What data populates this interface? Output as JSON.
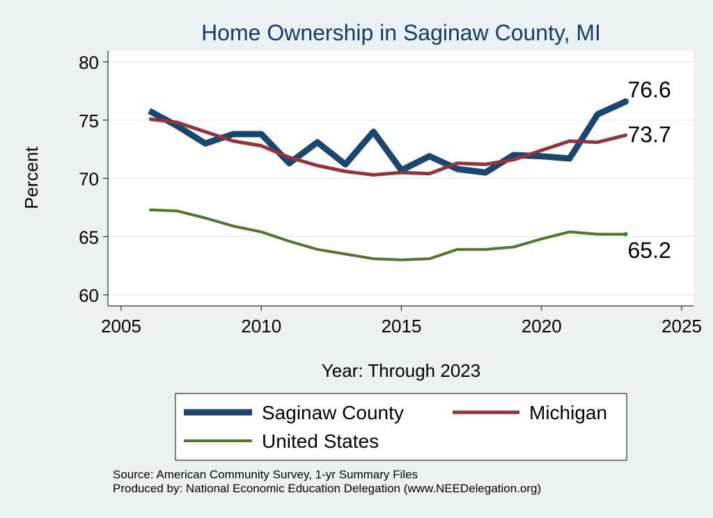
{
  "chart_data": {
    "type": "line",
    "title": "Home Ownership in Saginaw County, MI",
    "xlabel": "Year: Through 2023",
    "ylabel": "Percent",
    "xlim": [
      2005,
      2025
    ],
    "ylim": [
      60,
      80
    ],
    "xticks": [
      2005,
      2010,
      2015,
      2020,
      2025
    ],
    "yticks": [
      60,
      65,
      70,
      75,
      80
    ],
    "grid": true,
    "legend_position": "bottom",
    "series": [
      {
        "name": "Saginaw County",
        "color": "#1a476f",
        "x": [
          2006,
          2007,
          2008,
          2009,
          2010,
          2011,
          2012,
          2013,
          2014,
          2015,
          2016,
          2017,
          2018,
          2019,
          2020,
          2021,
          2022,
          2023
        ],
        "values": [
          75.8,
          74.5,
          73.0,
          73.8,
          73.8,
          71.3,
          73.1,
          71.2,
          74.0,
          70.7,
          71.9,
          70.8,
          70.5,
          72.0,
          71.9,
          71.7,
          75.5,
          76.6
        ],
        "end_label": "76.6"
      },
      {
        "name": "Michigan",
        "color": "#90353b",
        "x": [
          2006,
          2007,
          2008,
          2009,
          2010,
          2011,
          2012,
          2013,
          2014,
          2015,
          2016,
          2017,
          2018,
          2019,
          2020,
          2021,
          2022,
          2023
        ],
        "values": [
          75.1,
          74.8,
          74.0,
          73.2,
          72.8,
          71.8,
          71.1,
          70.6,
          70.3,
          70.5,
          70.4,
          71.3,
          71.2,
          71.6,
          72.4,
          73.2,
          73.1,
          73.7
        ],
        "end_label": "73.7"
      },
      {
        "name": "United States",
        "color": "#55752f",
        "x": [
          2006,
          2007,
          2008,
          2009,
          2010,
          2011,
          2012,
          2013,
          2014,
          2015,
          2016,
          2017,
          2018,
          2019,
          2020,
          2021,
          2022,
          2023
        ],
        "values": [
          67.3,
          67.2,
          66.6,
          65.9,
          65.4,
          64.6,
          63.9,
          63.5,
          63.1,
          63.0,
          63.1,
          63.9,
          63.9,
          64.1,
          64.8,
          65.4,
          65.2,
          65.2
        ],
        "end_label": "65.2"
      }
    ],
    "notes": [
      "Source: American Community Survey, 1-yr Summary Files",
      "Produced by: National Economic Education Delegation (www.NEEDelegation.org)"
    ]
  }
}
